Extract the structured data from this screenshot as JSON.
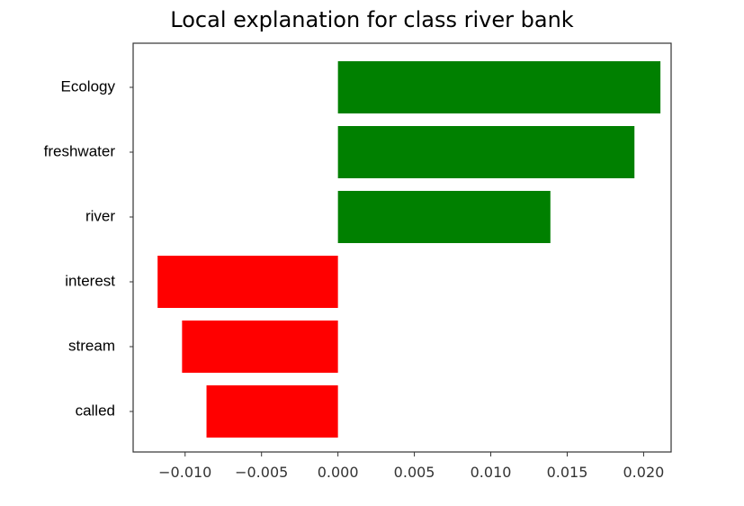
{
  "chart_data": {
    "type": "bar",
    "orientation": "horizontal",
    "title": "Local explanation for class river bank",
    "xlabel": "",
    "ylabel": "",
    "categories": [
      "Ecology",
      "freshwater",
      "river",
      "interest",
      "stream",
      "called"
    ],
    "values": [
      0.0211,
      0.0194,
      0.0139,
      -0.0118,
      -0.0102,
      -0.0086
    ],
    "x_ticks": [
      "−0.010",
      "−0.005",
      "0.000",
      "0.005",
      "0.010",
      "0.015",
      "0.020"
    ],
    "xlim": [
      -0.0134,
      0.0218
    ],
    "grid": false,
    "colors": {
      "positive": "#008000",
      "negative": "#ff0000",
      "axis": "#333333"
    }
  }
}
